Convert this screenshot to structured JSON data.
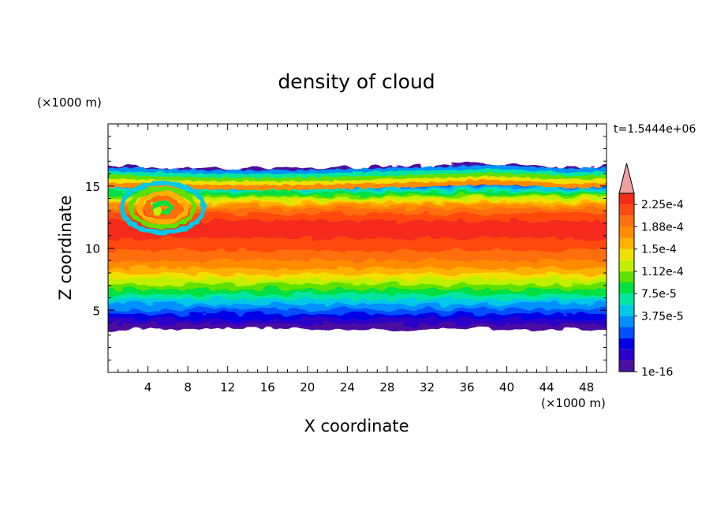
{
  "chart_data": {
    "type": "heatmap",
    "title": "density of cloud",
    "xlabel": "X coordinate",
    "ylabel": "Z coordinate",
    "x_unit": "(×1000 m)",
    "y_unit": "(×1000 m)",
    "time_label": "t=1.5444e+06",
    "xlim": [
      0,
      50
    ],
    "ylim": [
      0,
      20
    ],
    "x_ticks": [
      4,
      8,
      12,
      16,
      20,
      24,
      28,
      32,
      36,
      40,
      44,
      48
    ],
    "y_ticks": [
      5,
      10,
      15
    ],
    "colorbar": {
      "levels": [
        "2.25e-4",
        "1.88e-4",
        "1.5e-4",
        "1.12e-4",
        "7.5e-5",
        "3.75e-5",
        "1e-16"
      ],
      "colors": [
        "#4B0FA0",
        "#2C00C8",
        "#0000E6",
        "#0050FF",
        "#0090FF",
        "#00C8E6",
        "#00E6A0",
        "#00E040",
        "#60E000",
        "#C0F000",
        "#F0E000",
        "#FFB000",
        "#FF8C00",
        "#FF6E10",
        "#FF4A10",
        "#F52A1A",
        "#F0A0A0"
      ],
      "extend": "max"
    },
    "cloud_layer": {
      "bottom_z": 3.5,
      "top_z": 16.5,
      "max_density_zone_z": [
        8,
        15
      ],
      "vortex_center": [
        5,
        13
      ]
    }
  }
}
